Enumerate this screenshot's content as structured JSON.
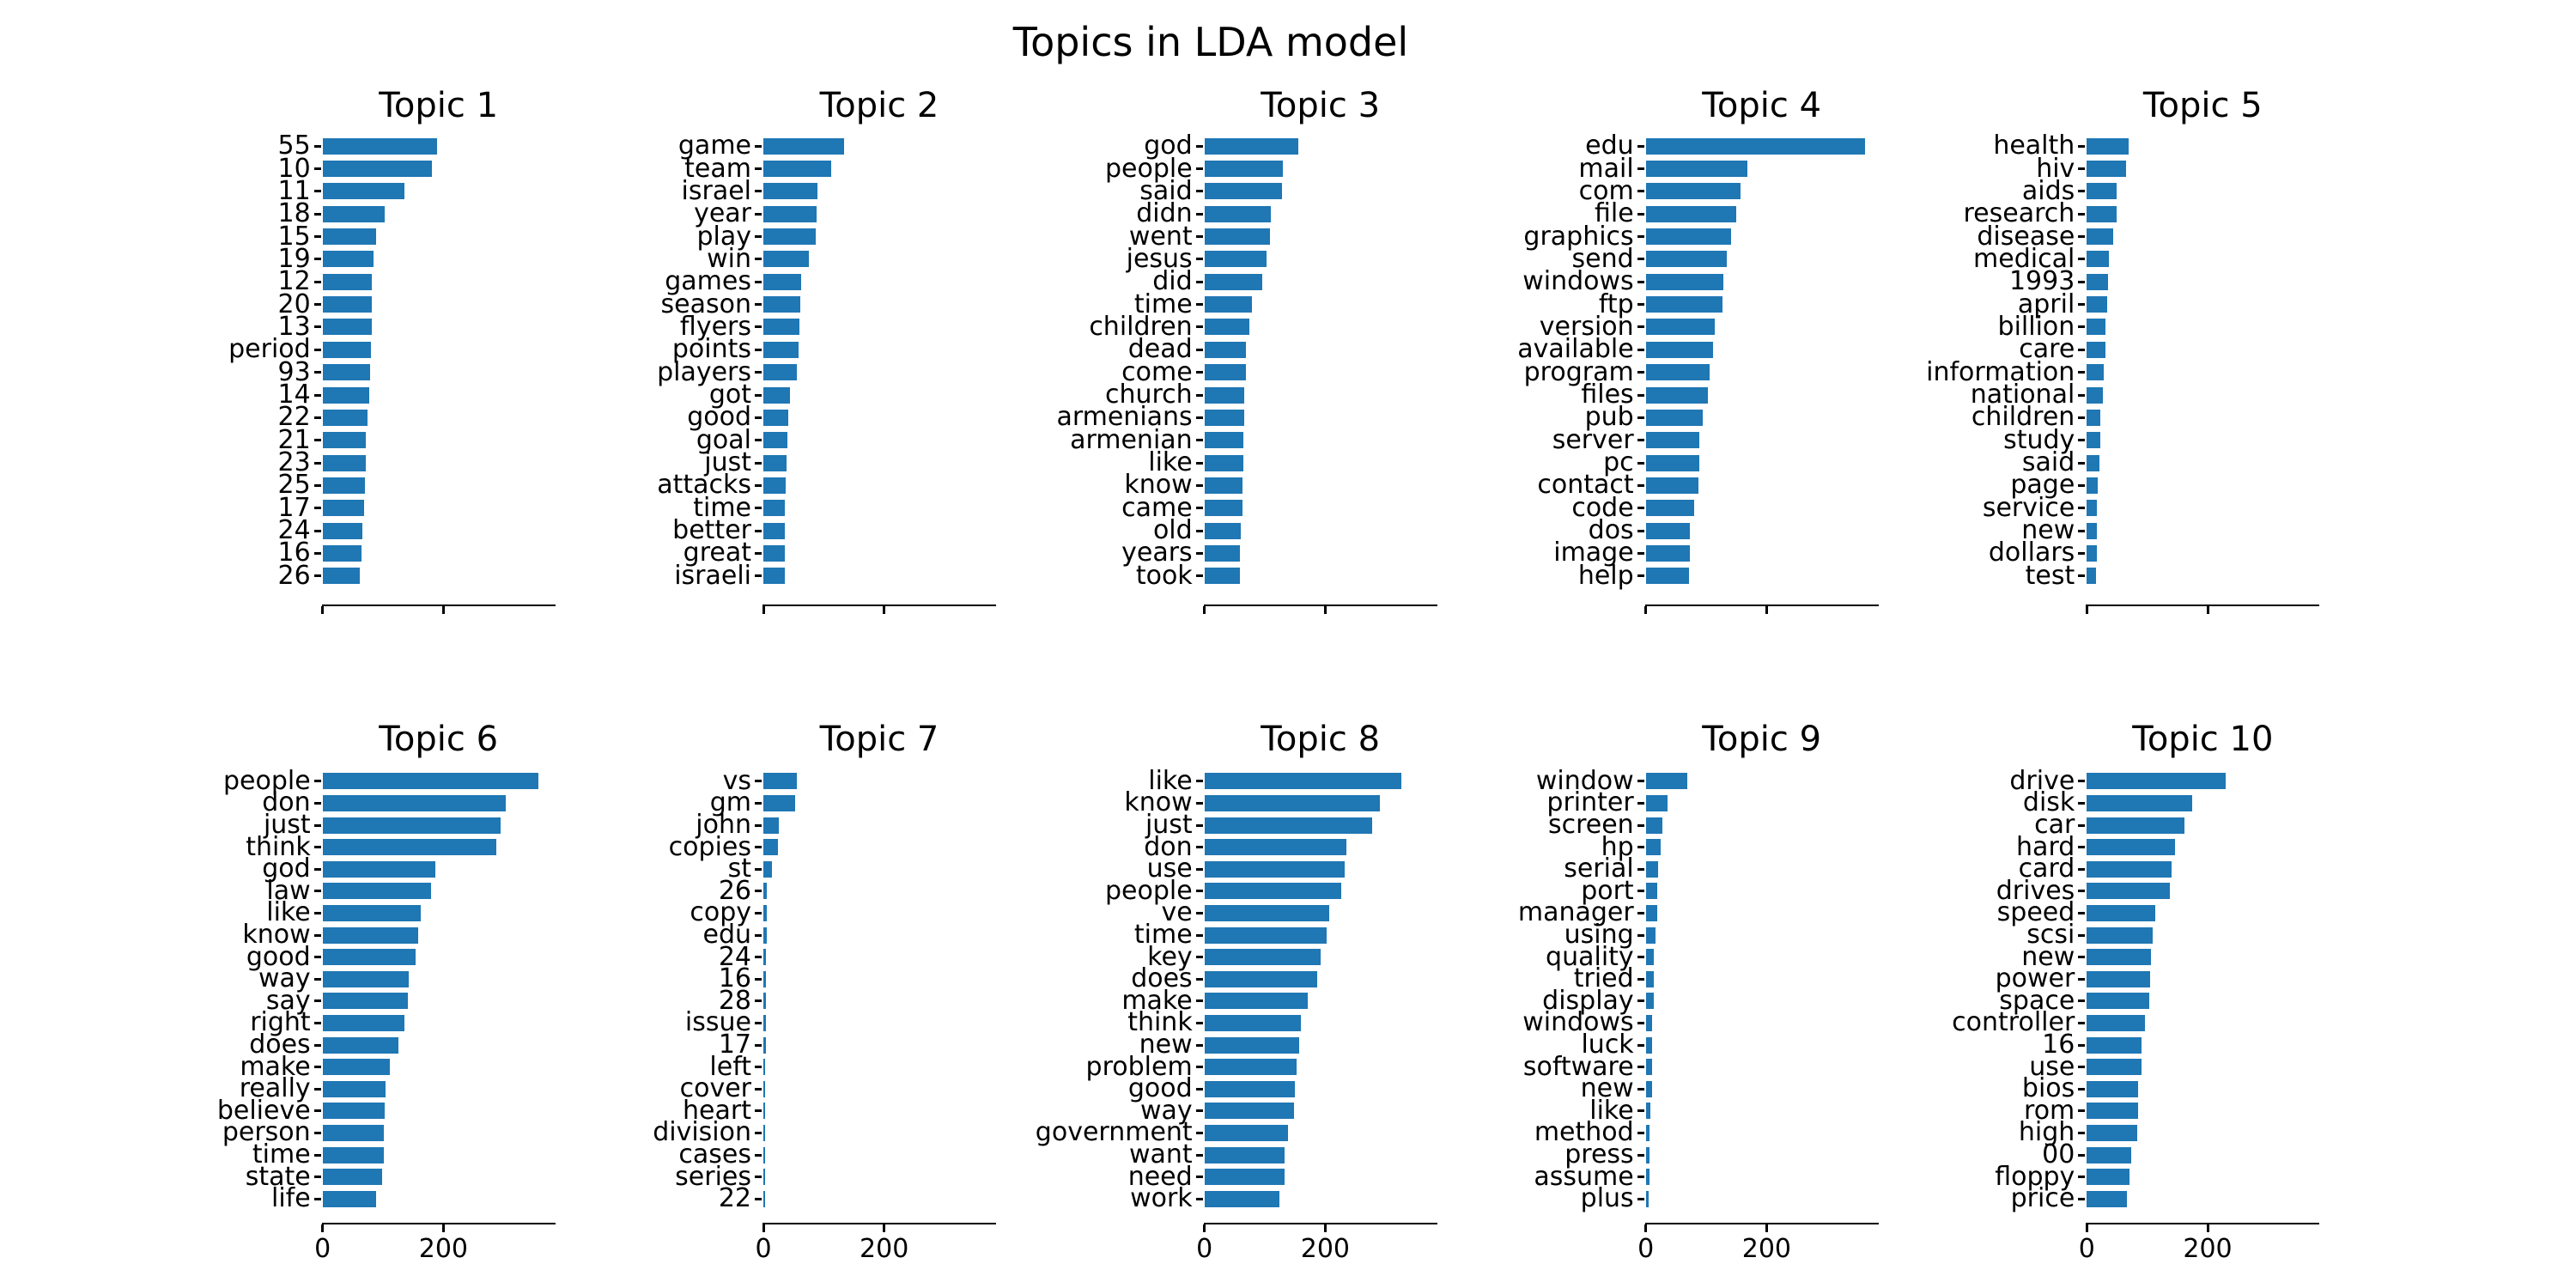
{
  "figure": {
    "suptitle": "Topics in LDA model"
  },
  "chart_data": {
    "type": "bar",
    "orientation": "horizontal",
    "title": "Topics in LDA model",
    "layout_hint": "2 rows x 5 columns of horizontal bar subplots, shared x scale, only bottom row shows x tick labels",
    "xticks": [
      "0",
      "200"
    ],
    "xlim": [
      0,
      385
    ],
    "grid": false,
    "bar_color": "#1f77b4",
    "text_color": "#000000",
    "topics": [
      {
        "title": "Topic 1",
        "words": [
          "55",
          "10",
          "11",
          "18",
          "15",
          "19",
          "12",
          "20",
          "13",
          "period",
          "93",
          "14",
          "22",
          "21",
          "23",
          "25",
          "17",
          "24",
          "16",
          "26"
        ],
        "values": [
          190,
          181,
          135,
          103,
          88,
          84,
          82,
          82,
          81,
          80,
          78,
          77,
          74,
          72,
          72,
          70,
          68,
          66,
          64,
          61
        ]
      },
      {
        "title": "Topic 2",
        "words": [
          "game",
          "team",
          "israel",
          "year",
          "play",
          "win",
          "games",
          "season",
          "flyers",
          "points",
          "players",
          "got",
          "good",
          "goal",
          "just",
          "attacks",
          "time",
          "better",
          "great",
          "israeli"
        ],
        "values": [
          133,
          112,
          90,
          88,
          87,
          76,
          62,
          61,
          60,
          58,
          56,
          44,
          41,
          40,
          38,
          37,
          36,
          36,
          35,
          35
        ]
      },
      {
        "title": "Topic 3",
        "words": [
          "god",
          "people",
          "said",
          "didn",
          "went",
          "jesus",
          "did",
          "time",
          "children",
          "dead",
          "come",
          "church",
          "armenians",
          "armenian",
          "like",
          "know",
          "came",
          "old",
          "years",
          "took"
        ],
        "values": [
          156,
          130,
          128,
          110,
          109,
          103,
          95,
          79,
          74,
          69,
          69,
          66,
          66,
          64,
          64,
          63,
          63,
          60,
          59,
          59
        ]
      },
      {
        "title": "Topic 4",
        "words": [
          "edu",
          "mail",
          "com",
          "file",
          "graphics",
          "send",
          "windows",
          "ftp",
          "version",
          "available",
          "program",
          "files",
          "pub",
          "server",
          "pc",
          "contact",
          "code",
          "dos",
          "image",
          "help"
        ],
        "values": [
          363,
          168,
          157,
          150,
          141,
          134,
          129,
          127,
          114,
          111,
          105,
          103,
          94,
          89,
          89,
          87,
          80,
          73,
          73,
          72
        ]
      },
      {
        "title": "Topic 5",
        "words": [
          "health",
          "hiv",
          "aids",
          "research",
          "disease",
          "medical",
          "1993",
          "april",
          "billion",
          "care",
          "information",
          "national",
          "children",
          "study",
          "said",
          "page",
          "service",
          "new",
          "dollars",
          "test"
        ],
        "values": [
          69,
          65,
          49,
          49,
          44,
          37,
          35,
          34,
          31,
          31,
          28,
          27,
          23,
          23,
          21,
          18,
          17,
          16,
          16,
          15
        ]
      },
      {
        "title": "Topic 6",
        "words": [
          "people",
          "don",
          "just",
          "think",
          "god",
          "law",
          "like",
          "know",
          "good",
          "way",
          "say",
          "right",
          "does",
          "make",
          "really",
          "believe",
          "person",
          "time",
          "state",
          "life"
        ],
        "values": [
          357,
          303,
          294,
          287,
          186,
          180,
          163,
          158,
          154,
          143,
          141,
          135,
          125,
          112,
          104,
          103,
          102,
          102,
          98,
          88
        ]
      },
      {
        "title": "Topic 7",
        "words": [
          "vs",
          "gm",
          "john",
          "copies",
          "st",
          "26",
          "copy",
          "edu",
          "24",
          "16",
          "28",
          "issue",
          "17",
          "left",
          "cover",
          "heart",
          "division",
          "cases",
          "series",
          "22"
        ],
        "values": [
          56,
          52,
          26,
          24,
          14,
          5,
          5,
          5,
          4,
          4,
          4,
          4,
          4,
          3,
          3,
          3,
          3,
          3,
          3,
          2
        ]
      },
      {
        "title": "Topic 8",
        "words": [
          "like",
          "know",
          "just",
          "don",
          "use",
          "people",
          "ve",
          "time",
          "key",
          "does",
          "make",
          "think",
          "new",
          "problem",
          "good",
          "way",
          "government",
          "want",
          "need",
          "work"
        ],
        "values": [
          326,
          290,
          277,
          235,
          232,
          227,
          206,
          202,
          193,
          186,
          171,
          160,
          157,
          153,
          150,
          148,
          139,
          133,
          133,
          124
        ]
      },
      {
        "title": "Topic 9",
        "words": [
          "window",
          "printer",
          "screen",
          "hp",
          "serial",
          "port",
          "manager",
          "using",
          "quality",
          "tried",
          "display",
          "windows",
          "luck",
          "software",
          "new",
          "like",
          "method",
          "press",
          "assume",
          "plus"
        ],
        "values": [
          69,
          36,
          28,
          24,
          20,
          19,
          19,
          16,
          13,
          13,
          13,
          11,
          11,
          10,
          10,
          7,
          6,
          6,
          6,
          4
        ]
      },
      {
        "title": "Topic 10",
        "words": [
          "drive",
          "disk",
          "car",
          "hard",
          "card",
          "drives",
          "speed",
          "scsi",
          "new",
          "power",
          "space",
          "controller",
          "16",
          "use",
          "bios",
          "rom",
          "high",
          "00",
          "floppy",
          "price"
        ],
        "values": [
          230,
          175,
          161,
          146,
          141,
          138,
          114,
          109,
          106,
          105,
          103,
          96,
          91,
          91,
          85,
          85,
          83,
          74,
          71,
          67
        ]
      }
    ]
  }
}
